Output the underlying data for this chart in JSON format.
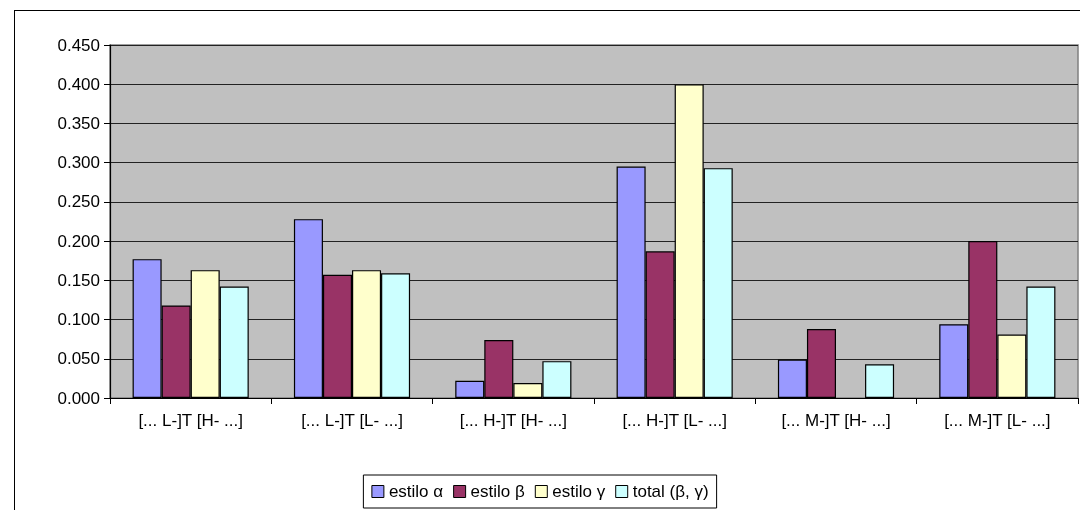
{
  "chart_data": {
    "type": "bar",
    "categories": [
      "[... L-]T [H- ...]",
      "[... L-]T [L- ...]",
      "[... H-]T [H- ...]",
      "[... H-]T [L- ...]",
      "[... M-]T [H- ...]",
      "[... M-]T [L- ...]"
    ],
    "series": [
      {
        "name": "estilo α",
        "color": "#9999ff",
        "values": [
          0.177,
          0.228,
          0.022,
          0.295,
          0.049,
          0.094
        ]
      },
      {
        "name": "estilo β",
        "color": "#993366",
        "values": [
          0.118,
          0.157,
          0.074,
          0.187,
          0.088,
          0.2
        ]
      },
      {
        "name": "estilo γ",
        "color": "#ffffcc",
        "values": [
          0.163,
          0.163,
          0.019,
          0.4,
          null,
          0.081
        ]
      },
      {
        "name": "total (β, γ)",
        "color": "#ccffff",
        "values": [
          0.142,
          0.159,
          0.047,
          0.293,
          0.043,
          0.142
        ]
      }
    ],
    "ylim": [
      0,
      0.45
    ],
    "yticks": [
      {
        "value": 0,
        "label": "0.000"
      },
      {
        "value": 0.05,
        "label": "0.050"
      },
      {
        "value": 0.1,
        "label": "0.100"
      },
      {
        "value": 0.15,
        "label": "0.150"
      },
      {
        "value": 0.2,
        "label": "0.200"
      },
      {
        "value": 0.25,
        "label": "0.250"
      },
      {
        "value": 0.3,
        "label": "0.300"
      },
      {
        "value": 0.35,
        "label": "0.350"
      },
      {
        "value": 0.4,
        "label": "0.400"
      },
      {
        "value": 0.45,
        "label": "0.450"
      }
    ],
    "grid": "y",
    "legend": "bottom"
  }
}
